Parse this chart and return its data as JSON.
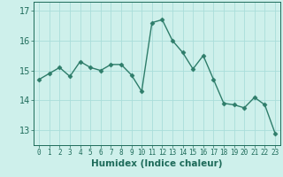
{
  "x": [
    0,
    1,
    2,
    3,
    4,
    5,
    6,
    7,
    8,
    9,
    10,
    11,
    12,
    13,
    14,
    15,
    16,
    17,
    18,
    19,
    20,
    21,
    22,
    23
  ],
  "y": [
    14.7,
    14.9,
    15.1,
    14.8,
    15.3,
    15.1,
    15.0,
    15.2,
    15.2,
    14.85,
    14.3,
    16.6,
    16.7,
    16.0,
    15.6,
    15.05,
    15.5,
    14.7,
    13.9,
    13.85,
    13.75,
    14.1,
    13.85,
    12.9
  ],
  "line_color": "#2e7d6a",
  "marker": "D",
  "markersize": 2.5,
  "linewidth": 1.0,
  "bg_color": "#cef0eb",
  "grid_color": "#aaddda",
  "xlabel": "Humidex (Indice chaleur)",
  "ylim": [
    12.5,
    17.3
  ],
  "xlim": [
    -0.5,
    23.5
  ],
  "yticks": [
    13,
    14,
    15,
    16,
    17
  ],
  "xticks": [
    0,
    1,
    2,
    3,
    4,
    5,
    6,
    7,
    8,
    9,
    10,
    11,
    12,
    13,
    14,
    15,
    16,
    17,
    18,
    19,
    20,
    21,
    22,
    23
  ],
  "tick_label_color": "#1e6b5a",
  "xlabel_color": "#1e6b5a",
  "xlabel_fontsize": 7.5,
  "ytick_fontsize": 7,
  "xtick_fontsize": 5.5
}
